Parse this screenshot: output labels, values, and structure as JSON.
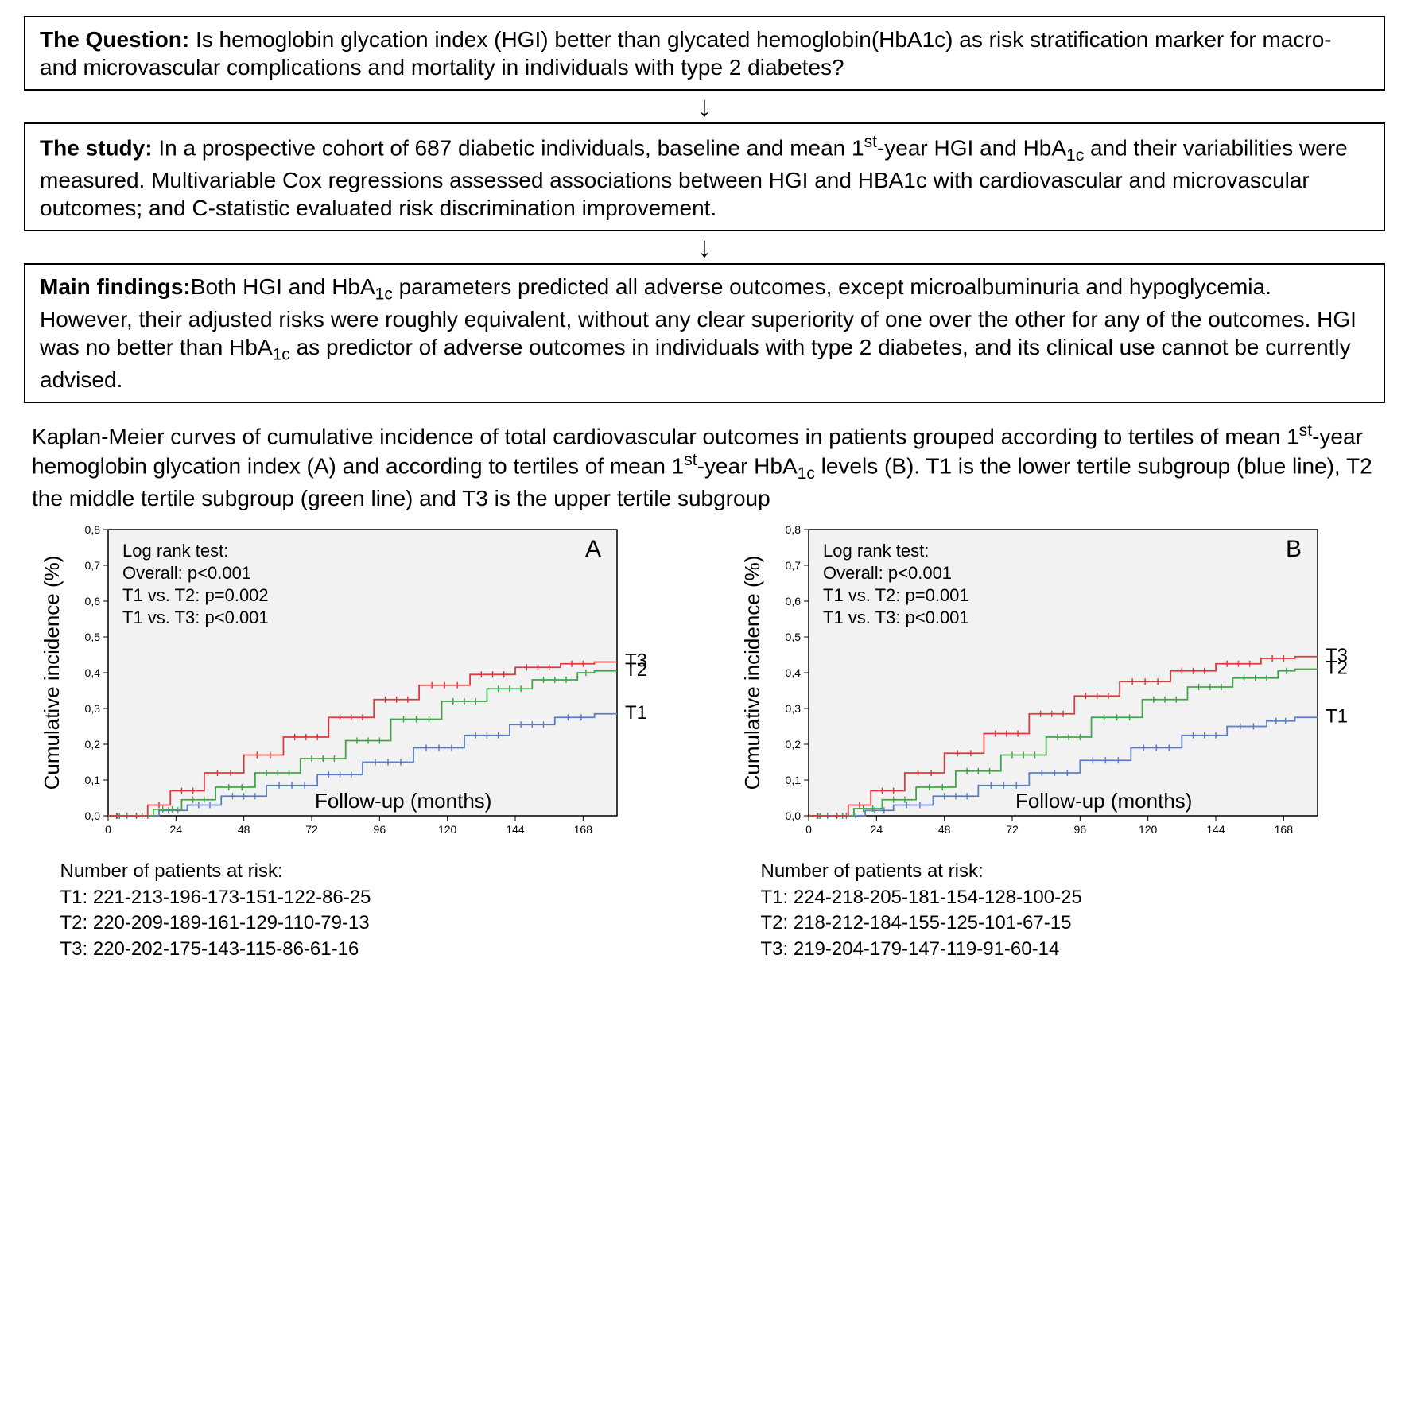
{
  "box1": {
    "label": "The Question: ",
    "text": "Is hemoglobin glycation index (HGI) better than glycated hemoglobin(HbA1c) as risk stratification marker for macro- and microvascular complications and mortality in individuals with type 2 diabetes?"
  },
  "box2": {
    "label": "The study: ",
    "text_a": "In a prospective cohort of 687 diabetic individuals, baseline and mean 1",
    "sup": "st",
    "text_b": "-year HGI and HbA",
    "sub": "1c",
    "text_c": " and their variabilities were measured. Multivariable Cox regressions assessed associations between HGI and  HBA1c with cardiovascular and microvascular outcomes; and C-statistic evaluated risk discrimination improvement."
  },
  "box3": {
    "label": "Main findings:",
    "text_a": "Both HGI and HbA",
    "sub1": "1c",
    "text_b": " parameters predicted all adverse outcomes, except microalbuminuria and hypoglycemia. However, their adjusted risks were roughly equivalent, without any clear superiority of one over the other for any of the outcomes. HGI was no better than HbA",
    "sub2": "1c",
    "text_c": " as predictor of adverse outcomes in individuals with type 2 diabetes, and its clinical use cannot be currently advised."
  },
  "caption": {
    "a": "Kaplan-Meier curves of cumulative incidence of total cardiovascular outcomes in patients grouped according to tertiles of mean 1",
    "sup1": "st",
    "b": "-year hemoglobin glycation index (A) and according to tertiles of mean 1",
    "sup2": "st",
    "c": "-year HbA",
    "sub": "1c",
    "d": " levels (B). T1 is the lower tertile subgroup (blue line), T2 the middle tertile subgroup (green line) and T3 is the upper tertile subgroup"
  },
  "chart_common": {
    "type": "kaplan-meier-survival",
    "plot_bg": "#f2f2f2",
    "axis_color": "#000000",
    "grid_color": "#c8c8c8",
    "ylabel": "Cumulative incidence (%)",
    "xlabel": "Follow-up (months)",
    "ylim": [
      0,
      0.8
    ],
    "yticks": [
      "0,0",
      "0,1",
      "0,2",
      "0,3",
      "0,4",
      "0,5",
      "0,6",
      "0,7",
      "0,8"
    ],
    "xlim": [
      0,
      180
    ],
    "xticks": [
      0,
      24,
      48,
      72,
      96,
      120,
      144,
      168
    ],
    "tick_fontsize": 14,
    "label_fontsize": 26,
    "panel_fontsize": 30,
    "logrank_fontsize": 22,
    "line_width": 1.8,
    "colors": {
      "T1": "#5b7fc7",
      "T2": "#3fa846",
      "T3": "#e03a3a"
    },
    "tertile_labels": [
      "T3",
      "T2",
      "T1"
    ],
    "risk_header": "Number of patients at risk:"
  },
  "chartA": {
    "panel": "A",
    "logrank": [
      "Log rank test:",
      "Overall: p<0.001",
      "T1 vs. T2: p=0.002",
      "T1 vs. T3: p<0.001"
    ],
    "series": {
      "T1": {
        "x": [
          0,
          10,
          18,
          28,
          40,
          56,
          74,
          90,
          108,
          126,
          142,
          158,
          172
        ],
        "y": [
          0,
          0,
          0.015,
          0.03,
          0.055,
          0.085,
          0.115,
          0.15,
          0.19,
          0.225,
          0.255,
          0.275,
          0.285
        ]
      },
      "T2": {
        "x": [
          0,
          8,
          16,
          26,
          38,
          52,
          68,
          84,
          100,
          118,
          134,
          150,
          166,
          172
        ],
        "y": [
          0,
          0,
          0.018,
          0.045,
          0.08,
          0.12,
          0.16,
          0.21,
          0.27,
          0.32,
          0.355,
          0.38,
          0.4,
          0.405
        ]
      },
      "T3": {
        "x": [
          0,
          6,
          14,
          22,
          34,
          48,
          62,
          78,
          94,
          110,
          128,
          144,
          160,
          172
        ],
        "y": [
          0,
          0,
          0.03,
          0.07,
          0.12,
          0.17,
          0.22,
          0.275,
          0.325,
          0.365,
          0.395,
          0.415,
          0.425,
          0.43
        ]
      }
    },
    "risk": {
      "T1": "T1: 221-213-196-173-151-122-86-25",
      "T2": "T2: 220-209-189-161-129-110-79-13",
      "T3": "T3: 220-202-175-143-115-86-61-16"
    }
  },
  "chartB": {
    "panel": "B",
    "logrank": [
      "Log rank test:",
      "Overall: p<0.001",
      "T1 vs. T2: p=0.001",
      "T1 vs. T3: p<0.001"
    ],
    "series": {
      "T1": {
        "x": [
          0,
          10,
          20,
          30,
          44,
          60,
          78,
          96,
          114,
          132,
          148,
          162,
          172
        ],
        "y": [
          0,
          0,
          0.015,
          0.03,
          0.055,
          0.085,
          0.12,
          0.155,
          0.19,
          0.225,
          0.25,
          0.265,
          0.275
        ]
      },
      "T2": {
        "x": [
          0,
          8,
          16,
          26,
          38,
          52,
          68,
          84,
          100,
          118,
          134,
          150,
          166,
          172
        ],
        "y": [
          0,
          0,
          0.02,
          0.045,
          0.08,
          0.125,
          0.17,
          0.22,
          0.275,
          0.325,
          0.36,
          0.385,
          0.405,
          0.41
        ]
      },
      "T3": {
        "x": [
          0,
          6,
          14,
          22,
          34,
          48,
          62,
          78,
          94,
          110,
          128,
          144,
          160,
          172
        ],
        "y": [
          0,
          0,
          0.03,
          0.07,
          0.12,
          0.175,
          0.23,
          0.285,
          0.335,
          0.375,
          0.405,
          0.425,
          0.44,
          0.445
        ]
      }
    },
    "risk": {
      "T1": "T1: 224-218-205-181-154-128-100-25",
      "T2": "T2: 218-212-184-155-125-101-67-15",
      "T3": "T3: 219-204-179-147-119-91-60-14"
    }
  }
}
